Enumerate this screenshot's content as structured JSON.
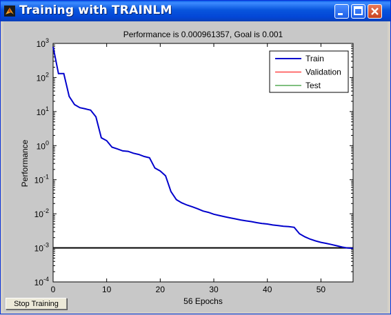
{
  "window": {
    "title": "Training with TRAINLM"
  },
  "stop_button_label": "Stop Training",
  "chart_data": {
    "type": "line",
    "title": "Performance is 0.000961357, Goal is 0.001",
    "xlabel": "56 Epochs",
    "ylabel": "Performance",
    "xlim": [
      0,
      56
    ],
    "ylim_log10": [
      -4,
      3
    ],
    "y_scale": "log",
    "x_ticks": [
      "0",
      "10",
      "20",
      "30",
      "40",
      "50"
    ],
    "y_tick_mantissa": "10",
    "y_tick_exponents": [
      "3",
      "2",
      "1",
      "0",
      "-1",
      "-2",
      "-3",
      "-4"
    ],
    "legend": {
      "placement": "top-right",
      "entries": [
        "Train",
        "Validation",
        "Test"
      ]
    },
    "goal": 0.001,
    "series": [
      {
        "name": "Train",
        "color": "#0000cc",
        "x": [
          0,
          1,
          2,
          3,
          4,
          5,
          6,
          7,
          8,
          9,
          10,
          11,
          12,
          13,
          14,
          15,
          16,
          17,
          18,
          19,
          20,
          21,
          22,
          23,
          24,
          25,
          26,
          27,
          28,
          29,
          30,
          31,
          32,
          33,
          34,
          35,
          36,
          37,
          38,
          39,
          40,
          41,
          42,
          43,
          44,
          45,
          46,
          47,
          48,
          49,
          50,
          51,
          52,
          53,
          54,
          55,
          56
        ],
        "y": [
          800,
          130,
          130,
          28,
          16,
          13,
          12,
          11,
          7,
          1.7,
          1.4,
          0.9,
          0.8,
          0.7,
          0.68,
          0.6,
          0.55,
          0.48,
          0.44,
          0.22,
          0.18,
          0.13,
          0.045,
          0.026,
          0.021,
          0.018,
          0.016,
          0.014,
          0.012,
          0.011,
          0.0097,
          0.0089,
          0.0082,
          0.0076,
          0.0071,
          0.0066,
          0.0062,
          0.0059,
          0.0055,
          0.0052,
          0.005,
          0.0047,
          0.0045,
          0.0043,
          0.0042,
          0.004,
          0.0026,
          0.0021,
          0.0018,
          0.0016,
          0.00145,
          0.00135,
          0.00125,
          0.00115,
          0.00105,
          0.00099,
          0.000961357
        ]
      },
      {
        "name": "Validation",
        "color": "#ff0000"
      },
      {
        "name": "Test",
        "color": "#008000"
      }
    ],
    "goal_color": "#000000"
  }
}
